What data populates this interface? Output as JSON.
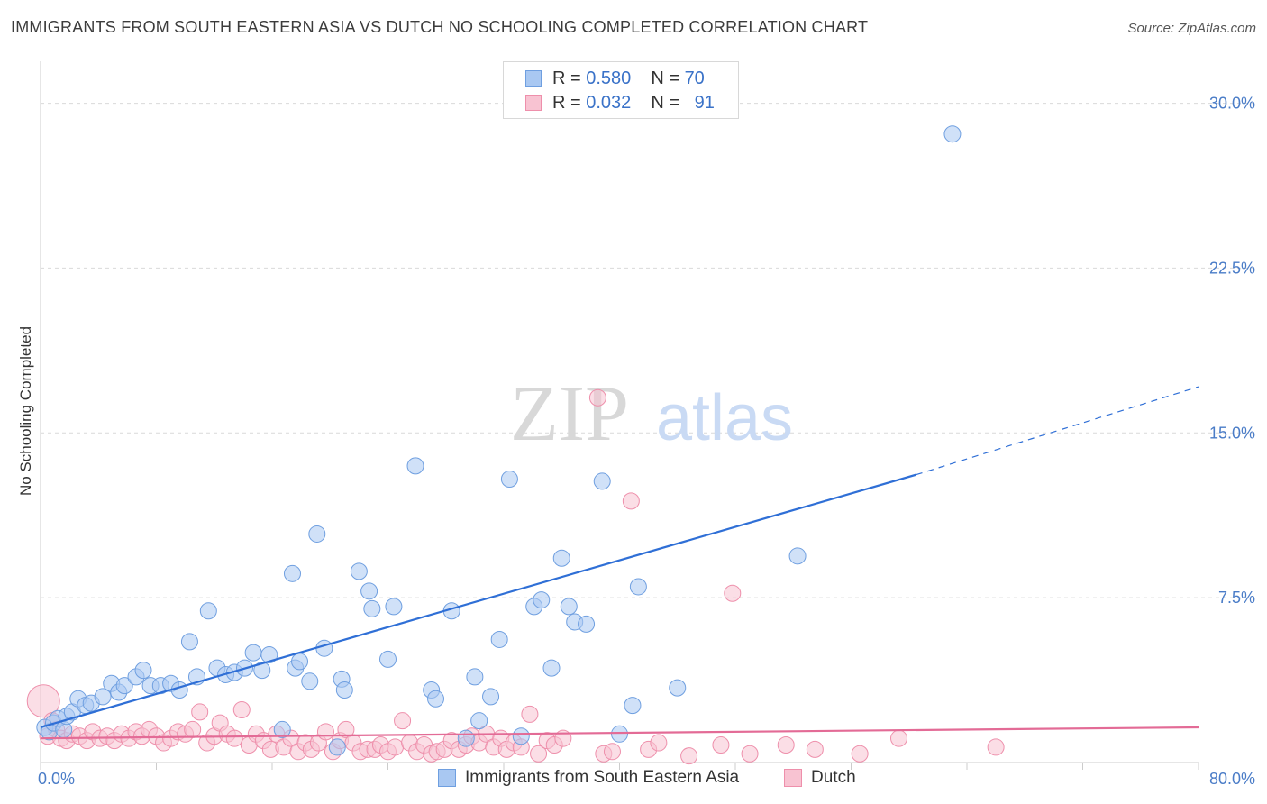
{
  "header": {
    "title": "IMMIGRANTS FROM SOUTH EASTERN ASIA VS DUTCH NO SCHOOLING COMPLETED CORRELATION CHART",
    "source": "Source: ZipAtlas.com"
  },
  "legend": {
    "r_label": "R =",
    "n_label": "N =",
    "rows": [
      {
        "r": "0.580",
        "n": "70",
        "color": "#a9c8f2",
        "border": "#6f9fe0"
      },
      {
        "r": "0.032",
        "n": "91",
        "color": "#f8c3d2",
        "border": "#ee8fab"
      }
    ]
  },
  "watermark": {
    "zip": "ZIP",
    "atlas": "atlas"
  },
  "colors": {
    "blue_fill": "#a9c8f2",
    "blue_stroke": "#6f9fe0",
    "blue_line": "#2f6fd6",
    "pink_fill": "#f8c3d2",
    "pink_stroke": "#ee8fab",
    "pink_line": "#e36b96",
    "grid": "#d9d9d9",
    "axis_tick_text": "#4a7cc7"
  },
  "chart_data": {
    "type": "scatter",
    "title": "IMMIGRANTS FROM SOUTH EASTERN ASIA VS DUTCH NO SCHOOLING COMPLETED CORRELATION CHART",
    "xlabel": "",
    "ylabel": "No Schooling Completed",
    "xlim": [
      0,
      80
    ],
    "ylim": [
      0,
      31.5
    ],
    "y_ticks": [
      7.5,
      15.0,
      22.5,
      30.0
    ],
    "y_tick_labels": [
      "7.5%",
      "15.0%",
      "22.5%",
      "30.0%"
    ],
    "x_tick_labels": [
      "0.0%",
      "80.0%"
    ],
    "grid": true,
    "legend_position": "top-center",
    "series": [
      {
        "name": "Immigrants from South Eastern Asia",
        "r": 0.58,
        "n": 70,
        "trend": {
          "x0": 0,
          "y0": 1.6,
          "x1": 60.5,
          "y1": 13.1,
          "dashed_to_x": 80,
          "dashed_to_y": 17.1
        },
        "points": [
          [
            0.3,
            1.6
          ],
          [
            0.6,
            1.4
          ],
          [
            0.9,
            1.8
          ],
          [
            1.2,
            2.0
          ],
          [
            1.6,
            1.5
          ],
          [
            1.8,
            2.1
          ],
          [
            2.2,
            2.3
          ],
          [
            2.6,
            2.9
          ],
          [
            3.1,
            2.6
          ],
          [
            3.5,
            2.7
          ],
          [
            4.3,
            3.0
          ],
          [
            4.9,
            3.6
          ],
          [
            5.4,
            3.2
          ],
          [
            5.8,
            3.5
          ],
          [
            6.6,
            3.9
          ],
          [
            7.1,
            4.2
          ],
          [
            7.6,
            3.5
          ],
          [
            8.3,
            3.5
          ],
          [
            9.0,
            3.6
          ],
          [
            9.6,
            3.3
          ],
          [
            10.3,
            5.5
          ],
          [
            10.8,
            3.9
          ],
          [
            11.6,
            6.9
          ],
          [
            12.2,
            4.3
          ],
          [
            12.8,
            4.0
          ],
          [
            13.4,
            4.1
          ],
          [
            14.1,
            4.3
          ],
          [
            14.7,
            5.0
          ],
          [
            15.3,
            4.2
          ],
          [
            15.8,
            4.9
          ],
          [
            17.6,
            4.3
          ],
          [
            17.9,
            4.6
          ],
          [
            18.6,
            3.7
          ],
          [
            19.1,
            10.4
          ],
          [
            19.6,
            5.2
          ],
          [
            20.5,
            0.7
          ],
          [
            20.8,
            3.8
          ],
          [
            21.0,
            3.3
          ],
          [
            22.0,
            8.7
          ],
          [
            22.7,
            7.8
          ],
          [
            22.9,
            7.0
          ],
          [
            24.0,
            4.7
          ],
          [
            24.4,
            7.1
          ],
          [
            25.9,
            13.5
          ],
          [
            27.0,
            3.3
          ],
          [
            27.3,
            2.9
          ],
          [
            28.4,
            6.9
          ],
          [
            29.4,
            1.1
          ],
          [
            30.0,
            3.9
          ],
          [
            30.3,
            1.9
          ],
          [
            31.1,
            3.0
          ],
          [
            31.7,
            5.6
          ],
          [
            32.4,
            12.9
          ],
          [
            33.2,
            1.2
          ],
          [
            34.1,
            7.1
          ],
          [
            34.6,
            7.4
          ],
          [
            35.3,
            4.3
          ],
          [
            36.0,
            9.3
          ],
          [
            36.5,
            7.1
          ],
          [
            36.9,
            6.4
          ],
          [
            37.7,
            6.3
          ],
          [
            38.8,
            12.8
          ],
          [
            40.0,
            1.3
          ],
          [
            40.9,
            2.6
          ],
          [
            41.3,
            8.0
          ],
          [
            44.0,
            3.4
          ],
          [
            52.3,
            9.4
          ],
          [
            63.0,
            28.6
          ],
          [
            17.4,
            8.6
          ],
          [
            16.7,
            1.5
          ]
        ]
      },
      {
        "name": "Dutch",
        "r": 0.032,
        "n": 91,
        "trend": {
          "x0": 0,
          "y0": 1.1,
          "x1": 80,
          "y1": 1.6
        },
        "points": [
          [
            0.2,
            2.8
          ],
          [
            0.5,
            1.2
          ],
          [
            0.8,
            1.9
          ],
          [
            1.1,
            1.5
          ],
          [
            1.4,
            1.1
          ],
          [
            1.8,
            1.0
          ],
          [
            2.2,
            1.3
          ],
          [
            2.7,
            1.2
          ],
          [
            3.2,
            1.0
          ],
          [
            3.6,
            1.4
          ],
          [
            4.1,
            1.1
          ],
          [
            4.6,
            1.2
          ],
          [
            5.1,
            1.0
          ],
          [
            5.6,
            1.3
          ],
          [
            6.1,
            1.1
          ],
          [
            6.6,
            1.4
          ],
          [
            7.0,
            1.2
          ],
          [
            7.5,
            1.5
          ],
          [
            8.0,
            1.2
          ],
          [
            8.5,
            0.9
          ],
          [
            9.0,
            1.1
          ],
          [
            9.5,
            1.4
          ],
          [
            10.0,
            1.3
          ],
          [
            10.5,
            1.5
          ],
          [
            11.0,
            2.3
          ],
          [
            11.5,
            0.9
          ],
          [
            12.0,
            1.2
          ],
          [
            12.4,
            1.8
          ],
          [
            12.9,
            1.3
          ],
          [
            13.4,
            1.1
          ],
          [
            13.9,
            2.4
          ],
          [
            14.4,
            0.8
          ],
          [
            14.9,
            1.3
          ],
          [
            15.4,
            1.0
          ],
          [
            15.9,
            0.6
          ],
          [
            16.3,
            1.3
          ],
          [
            16.8,
            0.7
          ],
          [
            17.3,
            1.1
          ],
          [
            17.8,
            0.5
          ],
          [
            18.3,
            0.9
          ],
          [
            18.7,
            0.6
          ],
          [
            19.2,
            0.9
          ],
          [
            19.7,
            1.4
          ],
          [
            20.2,
            0.5
          ],
          [
            20.7,
            1.0
          ],
          [
            21.1,
            1.5
          ],
          [
            21.6,
            0.9
          ],
          [
            22.1,
            0.5
          ],
          [
            22.6,
            0.6
          ],
          [
            23.1,
            0.6
          ],
          [
            23.5,
            0.8
          ],
          [
            24.0,
            0.5
          ],
          [
            24.5,
            0.7
          ],
          [
            25.0,
            1.9
          ],
          [
            25.5,
            0.9
          ],
          [
            26.0,
            0.5
          ],
          [
            26.5,
            0.8
          ],
          [
            27.0,
            0.4
          ],
          [
            27.4,
            0.5
          ],
          [
            27.9,
            0.6
          ],
          [
            28.4,
            1.0
          ],
          [
            28.9,
            0.6
          ],
          [
            29.4,
            0.8
          ],
          [
            29.8,
            1.2
          ],
          [
            30.3,
            0.9
          ],
          [
            30.8,
            1.3
          ],
          [
            31.3,
            0.7
          ],
          [
            31.8,
            1.1
          ],
          [
            32.2,
            0.6
          ],
          [
            32.7,
            0.9
          ],
          [
            33.2,
            0.7
          ],
          [
            33.8,
            2.2
          ],
          [
            34.4,
            0.4
          ],
          [
            35.0,
            1.0
          ],
          [
            35.5,
            0.8
          ],
          [
            36.1,
            1.1
          ],
          [
            38.5,
            16.6
          ],
          [
            38.9,
            0.4
          ],
          [
            39.5,
            0.5
          ],
          [
            40.8,
            11.9
          ],
          [
            42.0,
            0.6
          ],
          [
            42.7,
            0.9
          ],
          [
            44.8,
            0.3
          ],
          [
            47.0,
            0.8
          ],
          [
            47.8,
            7.7
          ],
          [
            49.0,
            0.4
          ],
          [
            51.5,
            0.8
          ],
          [
            53.5,
            0.6
          ],
          [
            56.6,
            0.4
          ],
          [
            59.3,
            1.1
          ],
          [
            66.0,
            0.7
          ]
        ]
      }
    ]
  },
  "bottom_legend": {
    "items": [
      "Immigrants from South Eastern Asia",
      "Dutch"
    ]
  }
}
